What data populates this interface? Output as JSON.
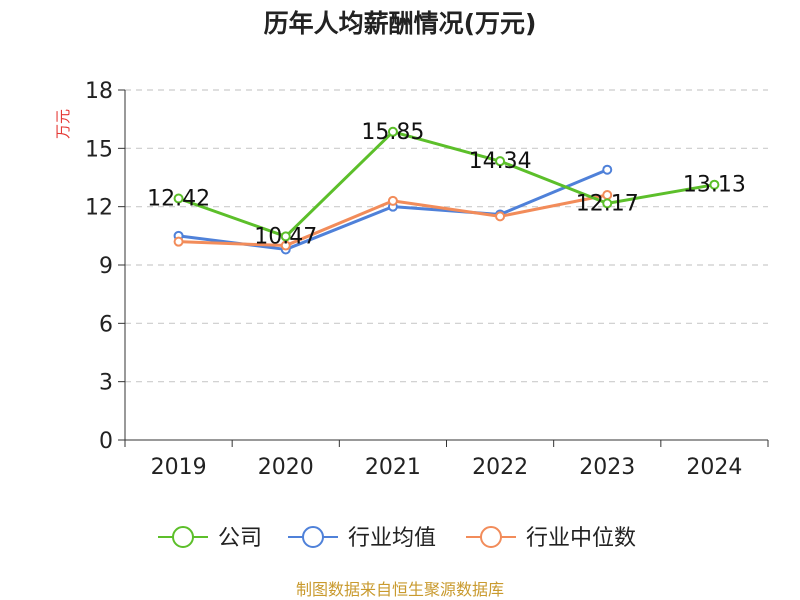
{
  "chart_data": {
    "type": "line",
    "title": "历年人均薪酬情况(万元)",
    "ylabel": "万元",
    "xlabel": "",
    "categories": [
      "2019",
      "2020",
      "2021",
      "2022",
      "2023",
      "2024"
    ],
    "ylim": [
      0,
      18
    ],
    "yticks": [
      0,
      3,
      6,
      9,
      12,
      15,
      18
    ],
    "grid": true,
    "legend_position": "bottom",
    "series": [
      {
        "name": "公司",
        "color": "#5cbf2a",
        "values": [
          12.42,
          10.47,
          15.85,
          14.34,
          12.17,
          13.13
        ],
        "labels": [
          "12.42",
          "10.47",
          "15.85",
          "14.34",
          "12.17",
          "13.13"
        ]
      },
      {
        "name": "行业均值",
        "color": "#4f81d9",
        "values": [
          10.5,
          9.8,
          12.0,
          11.6,
          13.9,
          null
        ]
      },
      {
        "name": "行业中位数",
        "color": "#f28c5a",
        "values": [
          10.2,
          10.0,
          12.3,
          11.5,
          12.6,
          null
        ]
      }
    ]
  },
  "source": "制图数据来自恒生聚源数据库",
  "colors": {
    "ylabel": "#e53935",
    "source": "#c99a2e",
    "axis": "#333333",
    "grid": "#cccccc"
  }
}
